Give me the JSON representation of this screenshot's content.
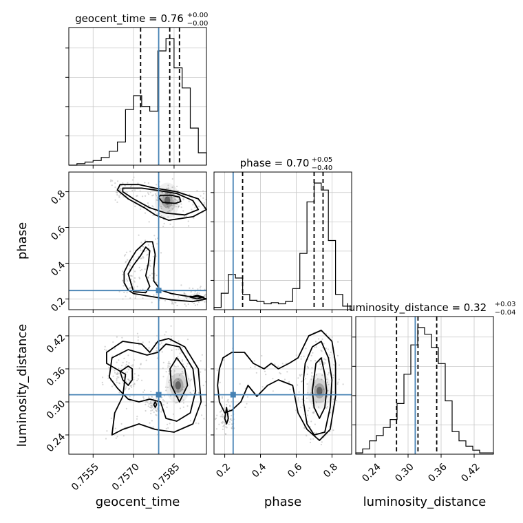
{
  "chart_data": {
    "type": "corner",
    "parameters": [
      "geocent_time",
      "phase",
      "luminosity_distance"
    ],
    "truth": {
      "geocent_time": 0.75793,
      "phase": 0.247,
      "luminosity_distance": 0.313
    },
    "truth_color": "#4682b4",
    "ranges": {
      "geocent_time": [
        0.7546,
        0.7597
      ],
      "phase": [
        0.14,
        0.91
      ],
      "luminosity_distance": [
        0.205,
        0.455
      ]
    },
    "ticks": {
      "geocent_time": [
        "0.7555",
        "0.7570",
        "0.7585"
      ],
      "phase": [
        "0.2",
        "0.4",
        "0.6",
        "0.8"
      ],
      "luminosity_distance": [
        "0.24",
        "0.30",
        "0.36",
        "0.42"
      ]
    },
    "titles": {
      "geocent_time": {
        "text": "geocent_time = 0.76",
        "plus": "+0.00",
        "minus": "−0.00"
      },
      "phase": {
        "text": "phase = 0.70",
        "plus": "+0.05",
        "minus": "−0.40"
      },
      "luminosity_distance": {
        "text": "luminosity_distance = 0.32",
        "plus": "+0.03",
        "minus": "−0.04"
      }
    },
    "quantiles": {
      "geocent_time": [
        0.75726,
        0.75834,
        0.7587
      ],
      "phase": [
        0.3,
        0.7,
        0.75
      ],
      "luminosity_distance": [
        0.279,
        0.318,
        0.352
      ]
    },
    "histograms": {
      "geocent_time": {
        "edges": [
          0.7546,
          0.7549,
          0.7552,
          0.7555,
          0.7558,
          0.7561,
          0.7564,
          0.7567,
          0.757,
          0.7573,
          0.7576,
          0.7579,
          0.7582,
          0.7585,
          0.7588,
          0.7591,
          0.7594,
          0.7597
        ],
        "counts": [
          0,
          1,
          2,
          3,
          5,
          9,
          15,
          36,
          45,
          38,
          35,
          74,
          82,
          63,
          50,
          24,
          8
        ]
      },
      "phase": {
        "edges": [
          0.14,
          0.18,
          0.22,
          0.26,
          0.3,
          0.34,
          0.38,
          0.42,
          0.46,
          0.5,
          0.54,
          0.58,
          0.62,
          0.66,
          0.7,
          0.74,
          0.78,
          0.82,
          0.86,
          0.91
        ],
        "counts": [
          2,
          14,
          30,
          27,
          13,
          8,
          7,
          5,
          6,
          5,
          7,
          18,
          48,
          92,
          108,
          102,
          59,
          13,
          3
        ]
      },
      "luminosity_distance": {
        "edges": [
          0.205,
          0.2175,
          0.23,
          0.2425,
          0.255,
          0.2675,
          0.28,
          0.2925,
          0.305,
          0.3175,
          0.33,
          0.3425,
          0.355,
          0.3675,
          0.38,
          0.3925,
          0.405,
          0.4175,
          0.43,
          0.4425,
          0.455
        ],
        "counts": [
          1,
          4,
          10,
          14,
          20,
          26,
          38,
          60,
          82,
          95,
          90,
          80,
          68,
          40,
          17,
          10,
          6,
          3,
          1,
          1
        ]
      }
    },
    "series": [
      {
        "pair": [
          "geocent_time",
          "phase"
        ],
        "contours": [
          [
            [
              0.75792,
              0.77
            ],
            [
              0.75808,
              0.74
            ],
            [
              0.75855,
              0.735
            ],
            [
              0.75875,
              0.745
            ],
            [
              0.7587,
              0.77
            ],
            [
              0.7584,
              0.78
            ],
            [
              0.758,
              0.78
            ],
            [
              0.75792,
              0.77
            ]
          ],
          [
            [
              0.7566,
              0.82
            ],
            [
              0.7573,
              0.82
            ],
            [
              0.758,
              0.805
            ],
            [
              0.7586,
              0.79
            ],
            [
              0.7592,
              0.75
            ],
            [
              0.7594,
              0.7
            ],
            [
              0.7589,
              0.67
            ],
            [
              0.7582,
              0.68
            ],
            [
              0.7576,
              0.71
            ],
            [
              0.757,
              0.76
            ],
            [
              0.7566,
              0.8
            ],
            [
              0.7566,
              0.82
            ]
          ],
          [
            [
              0.7565,
              0.84
            ],
            [
              0.7572,
              0.84
            ],
            [
              0.7578,
              0.82
            ],
            [
              0.7586,
              0.8
            ],
            [
              0.7594,
              0.76
            ],
            [
              0.7597,
              0.7
            ],
            [
              0.7592,
              0.66
            ],
            [
              0.7583,
              0.64
            ],
            [
              0.7578,
              0.67
            ],
            [
              0.7574,
              0.71
            ],
            [
              0.7568,
              0.76
            ],
            [
              0.7564,
              0.81
            ],
            [
              0.7565,
              0.84
            ]
          ],
          [
            [
              0.7569,
              0.29
            ],
            [
              0.7568,
              0.34
            ],
            [
              0.757,
              0.39
            ],
            [
              0.75725,
              0.44
            ],
            [
              0.75745,
              0.49
            ],
            [
              0.7576,
              0.47
            ],
            [
              0.75755,
              0.4
            ],
            [
              0.75745,
              0.33
            ],
            [
              0.7576,
              0.27
            ],
            [
              0.75745,
              0.235
            ],
            [
              0.757,
              0.24
            ],
            [
              0.7569,
              0.29
            ]
          ],
          [
            [
              0.7568,
              0.25
            ],
            [
              0.75665,
              0.29
            ],
            [
              0.75665,
              0.35
            ],
            [
              0.75685,
              0.41
            ],
            [
              0.7571,
              0.47
            ],
            [
              0.75745,
              0.52
            ],
            [
              0.7577,
              0.52
            ],
            [
              0.7578,
              0.45
            ],
            [
              0.75775,
              0.37
            ],
            [
              0.75775,
              0.3
            ],
            [
              0.758,
              0.25
            ],
            [
              0.7584,
              0.23
            ],
            [
              0.759,
              0.215
            ],
            [
              0.7595,
              0.21
            ],
            [
              0.7597,
              0.2
            ],
            [
              0.7592,
              0.185
            ],
            [
              0.7584,
              0.195
            ],
            [
              0.7576,
              0.215
            ],
            [
              0.757,
              0.23
            ],
            [
              0.7568,
              0.25
            ]
          ],
          [
            [
              0.7591,
              0.21
            ],
            [
              0.75935,
              0.22
            ],
            [
              0.7596,
              0.21
            ],
            [
              0.75935,
              0.2
            ],
            [
              0.7591,
              0.21
            ]
          ]
        ]
      },
      {
        "pair": [
          "geocent_time",
          "luminosity_distance"
        ],
        "contours": [
          [
            [
              0.75835,
              0.36
            ],
            [
              0.7584,
              0.33
            ],
            [
              0.7587,
              0.3
            ],
            [
              0.759,
              0.33
            ],
            [
              0.7589,
              0.36
            ],
            [
              0.7586,
              0.38
            ],
            [
              0.75835,
              0.36
            ]
          ],
          [
            [
              0.7565,
              0.355
            ],
            [
              0.7566,
              0.34
            ],
            [
              0.7568,
              0.33
            ],
            [
              0.75695,
              0.34
            ],
            [
              0.75695,
              0.36
            ],
            [
              0.7568,
              0.365
            ],
            [
              0.7565,
              0.355
            ]
          ],
          [
            [
              0.7561,
              0.345
            ],
            [
              0.7562,
              0.38
            ],
            [
              0.7568,
              0.395
            ],
            [
              0.7575,
              0.385
            ],
            [
              0.7579,
              0.39
            ],
            [
              0.7582,
              0.405
            ],
            [
              0.7587,
              0.4
            ],
            [
              0.7592,
              0.36
            ],
            [
              0.7593,
              0.32
            ],
            [
              0.7591,
              0.28
            ],
            [
              0.7586,
              0.265
            ],
            [
              0.7582,
              0.27
            ],
            [
              0.758,
              0.3
            ],
            [
              0.7576,
              0.305
            ],
            [
              0.7572,
              0.3
            ],
            [
              0.7568,
              0.305
            ],
            [
              0.7564,
              0.325
            ],
            [
              0.7561,
              0.345
            ]
          ],
          [
            [
              0.7562,
              0.24
            ],
            [
              0.7563,
              0.28
            ],
            [
              0.7566,
              0.31
            ],
            [
              0.7567,
              0.35
            ],
            [
              0.756,
              0.37
            ],
            [
              0.756,
              0.39
            ],
            [
              0.7566,
              0.41
            ],
            [
              0.7573,
              0.405
            ],
            [
              0.7576,
              0.39
            ],
            [
              0.7579,
              0.41
            ],
            [
              0.7583,
              0.415
            ],
            [
              0.7589,
              0.4
            ],
            [
              0.7594,
              0.36
            ],
            [
              0.7595,
              0.3
            ],
            [
              0.7592,
              0.26
            ],
            [
              0.7585,
              0.245
            ],
            [
              0.7578,
              0.25
            ],
            [
              0.7572,
              0.26
            ],
            [
              0.7566,
              0.25
            ],
            [
              0.7562,
              0.24
            ]
          ],
          [
            [
              0.75775,
              0.295
            ],
            [
              0.7578,
              0.29
            ],
            [
              0.75785,
              0.295
            ],
            [
              0.7578,
              0.3
            ],
            [
              0.75775,
              0.295
            ]
          ]
        ]
      },
      {
        "pair": [
          "phase",
          "luminosity_distance"
        ],
        "contours": [
          [
            [
              0.7,
              0.345
            ],
            [
              0.69,
              0.32
            ],
            [
              0.7,
              0.29
            ],
            [
              0.73,
              0.27
            ],
            [
              0.76,
              0.29
            ],
            [
              0.77,
              0.32
            ],
            [
              0.76,
              0.35
            ],
            [
              0.74,
              0.38
            ],
            [
              0.71,
              0.37
            ],
            [
              0.7,
              0.345
            ]
          ],
          [
            [
              0.64,
              0.34
            ],
            [
              0.64,
              0.3
            ],
            [
              0.66,
              0.26
            ],
            [
              0.7,
              0.24
            ],
            [
              0.76,
              0.245
            ],
            [
              0.79,
              0.29
            ],
            [
              0.8,
              0.34
            ],
            [
              0.78,
              0.38
            ],
            [
              0.74,
              0.41
            ],
            [
              0.69,
              0.4
            ],
            [
              0.65,
              0.37
            ],
            [
              0.64,
              0.34
            ]
          ],
          [
            [
              0.17,
              0.36
            ],
            [
              0.16,
              0.33
            ],
            [
              0.17,
              0.3
            ],
            [
              0.2,
              0.28
            ],
            [
              0.24,
              0.285
            ],
            [
              0.29,
              0.3
            ],
            [
              0.33,
              0.33
            ],
            [
              0.38,
              0.31
            ],
            [
              0.44,
              0.33
            ],
            [
              0.5,
              0.34
            ],
            [
              0.58,
              0.33
            ],
            [
              0.61,
              0.28
            ],
            [
              0.66,
              0.25
            ],
            [
              0.73,
              0.23
            ],
            [
              0.79,
              0.25
            ],
            [
              0.82,
              0.31
            ],
            [
              0.82,
              0.37
            ],
            [
              0.8,
              0.41
            ],
            [
              0.74,
              0.43
            ],
            [
              0.67,
              0.42
            ],
            [
              0.61,
              0.38
            ],
            [
              0.56,
              0.37
            ],
            [
              0.5,
              0.36
            ],
            [
              0.46,
              0.37
            ],
            [
              0.42,
              0.36
            ],
            [
              0.36,
              0.37
            ],
            [
              0.31,
              0.39
            ],
            [
              0.24,
              0.39
            ],
            [
              0.19,
              0.38
            ],
            [
              0.17,
              0.36
            ]
          ],
          [
            [
              0.2,
              0.27
            ],
            [
              0.21,
              0.29
            ],
            [
              0.22,
              0.27
            ],
            [
              0.21,
              0.26
            ],
            [
              0.2,
              0.27
            ]
          ]
        ]
      }
    ],
    "density_peaks": [
      {
        "pair": [
          "geocent_time",
          "phase"
        ],
        "x": 0.75825,
        "y": 0.75
      },
      {
        "pair": [
          "geocent_time",
          "luminosity_distance"
        ],
        "x": 0.75865,
        "y": 0.33
      },
      {
        "pair": [
          "phase",
          "luminosity_distance"
        ],
        "x": 0.73,
        "y": 0.32
      }
    ]
  }
}
